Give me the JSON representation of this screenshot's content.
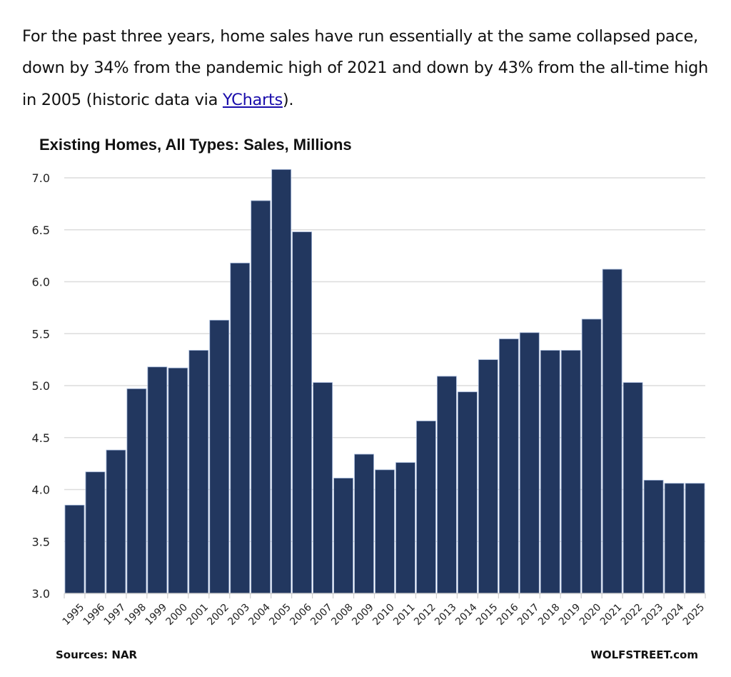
{
  "article": {
    "text_before_link": "For the past three years, home sales have run essentially at the same collapsed pace, down by 34% from the pandemic high of 2021 and down by 43% from the all-time high in 2005 (historic data via ",
    "link_text": "YCharts",
    "text_after_link": ")."
  },
  "chart_data": {
    "type": "bar",
    "title": "Existing Homes, All Types: Sales, Millions",
    "xlabel": "",
    "ylabel": "",
    "ylim": [
      3.0,
      7.0
    ],
    "y_ticks": [
      "3.0",
      "3.5",
      "4.0",
      "4.5",
      "5.0",
      "5.5",
      "6.0",
      "6.5",
      "7.0"
    ],
    "y_tick_values": [
      3.0,
      3.5,
      4.0,
      4.5,
      5.0,
      5.5,
      6.0,
      6.5,
      7.0
    ],
    "grid": true,
    "bar_color": "#22375f",
    "categories": [
      "1995",
      "1996",
      "1997",
      "1998",
      "1999",
      "2000",
      "2001",
      "2002",
      "2003",
      "2004",
      "2005",
      "2006",
      "2007",
      "2008",
      "2009",
      "2010",
      "2011",
      "2012",
      "2013",
      "2014",
      "2015",
      "2016",
      "2017",
      "2018",
      "2019",
      "2020",
      "2021",
      "2022",
      "2023",
      "2024",
      "2025"
    ],
    "values": [
      3.85,
      4.17,
      4.38,
      4.97,
      5.18,
      5.17,
      5.34,
      5.63,
      6.18,
      6.78,
      7.08,
      6.48,
      5.03,
      4.11,
      4.34,
      4.19,
      4.26,
      4.66,
      5.09,
      4.94,
      5.25,
      5.45,
      5.51,
      5.34,
      5.34,
      5.64,
      6.12,
      5.03,
      4.09,
      4.06,
      4.06
    ],
    "source": "Sources: NAR",
    "credit": "WOLFSTREET.com"
  }
}
